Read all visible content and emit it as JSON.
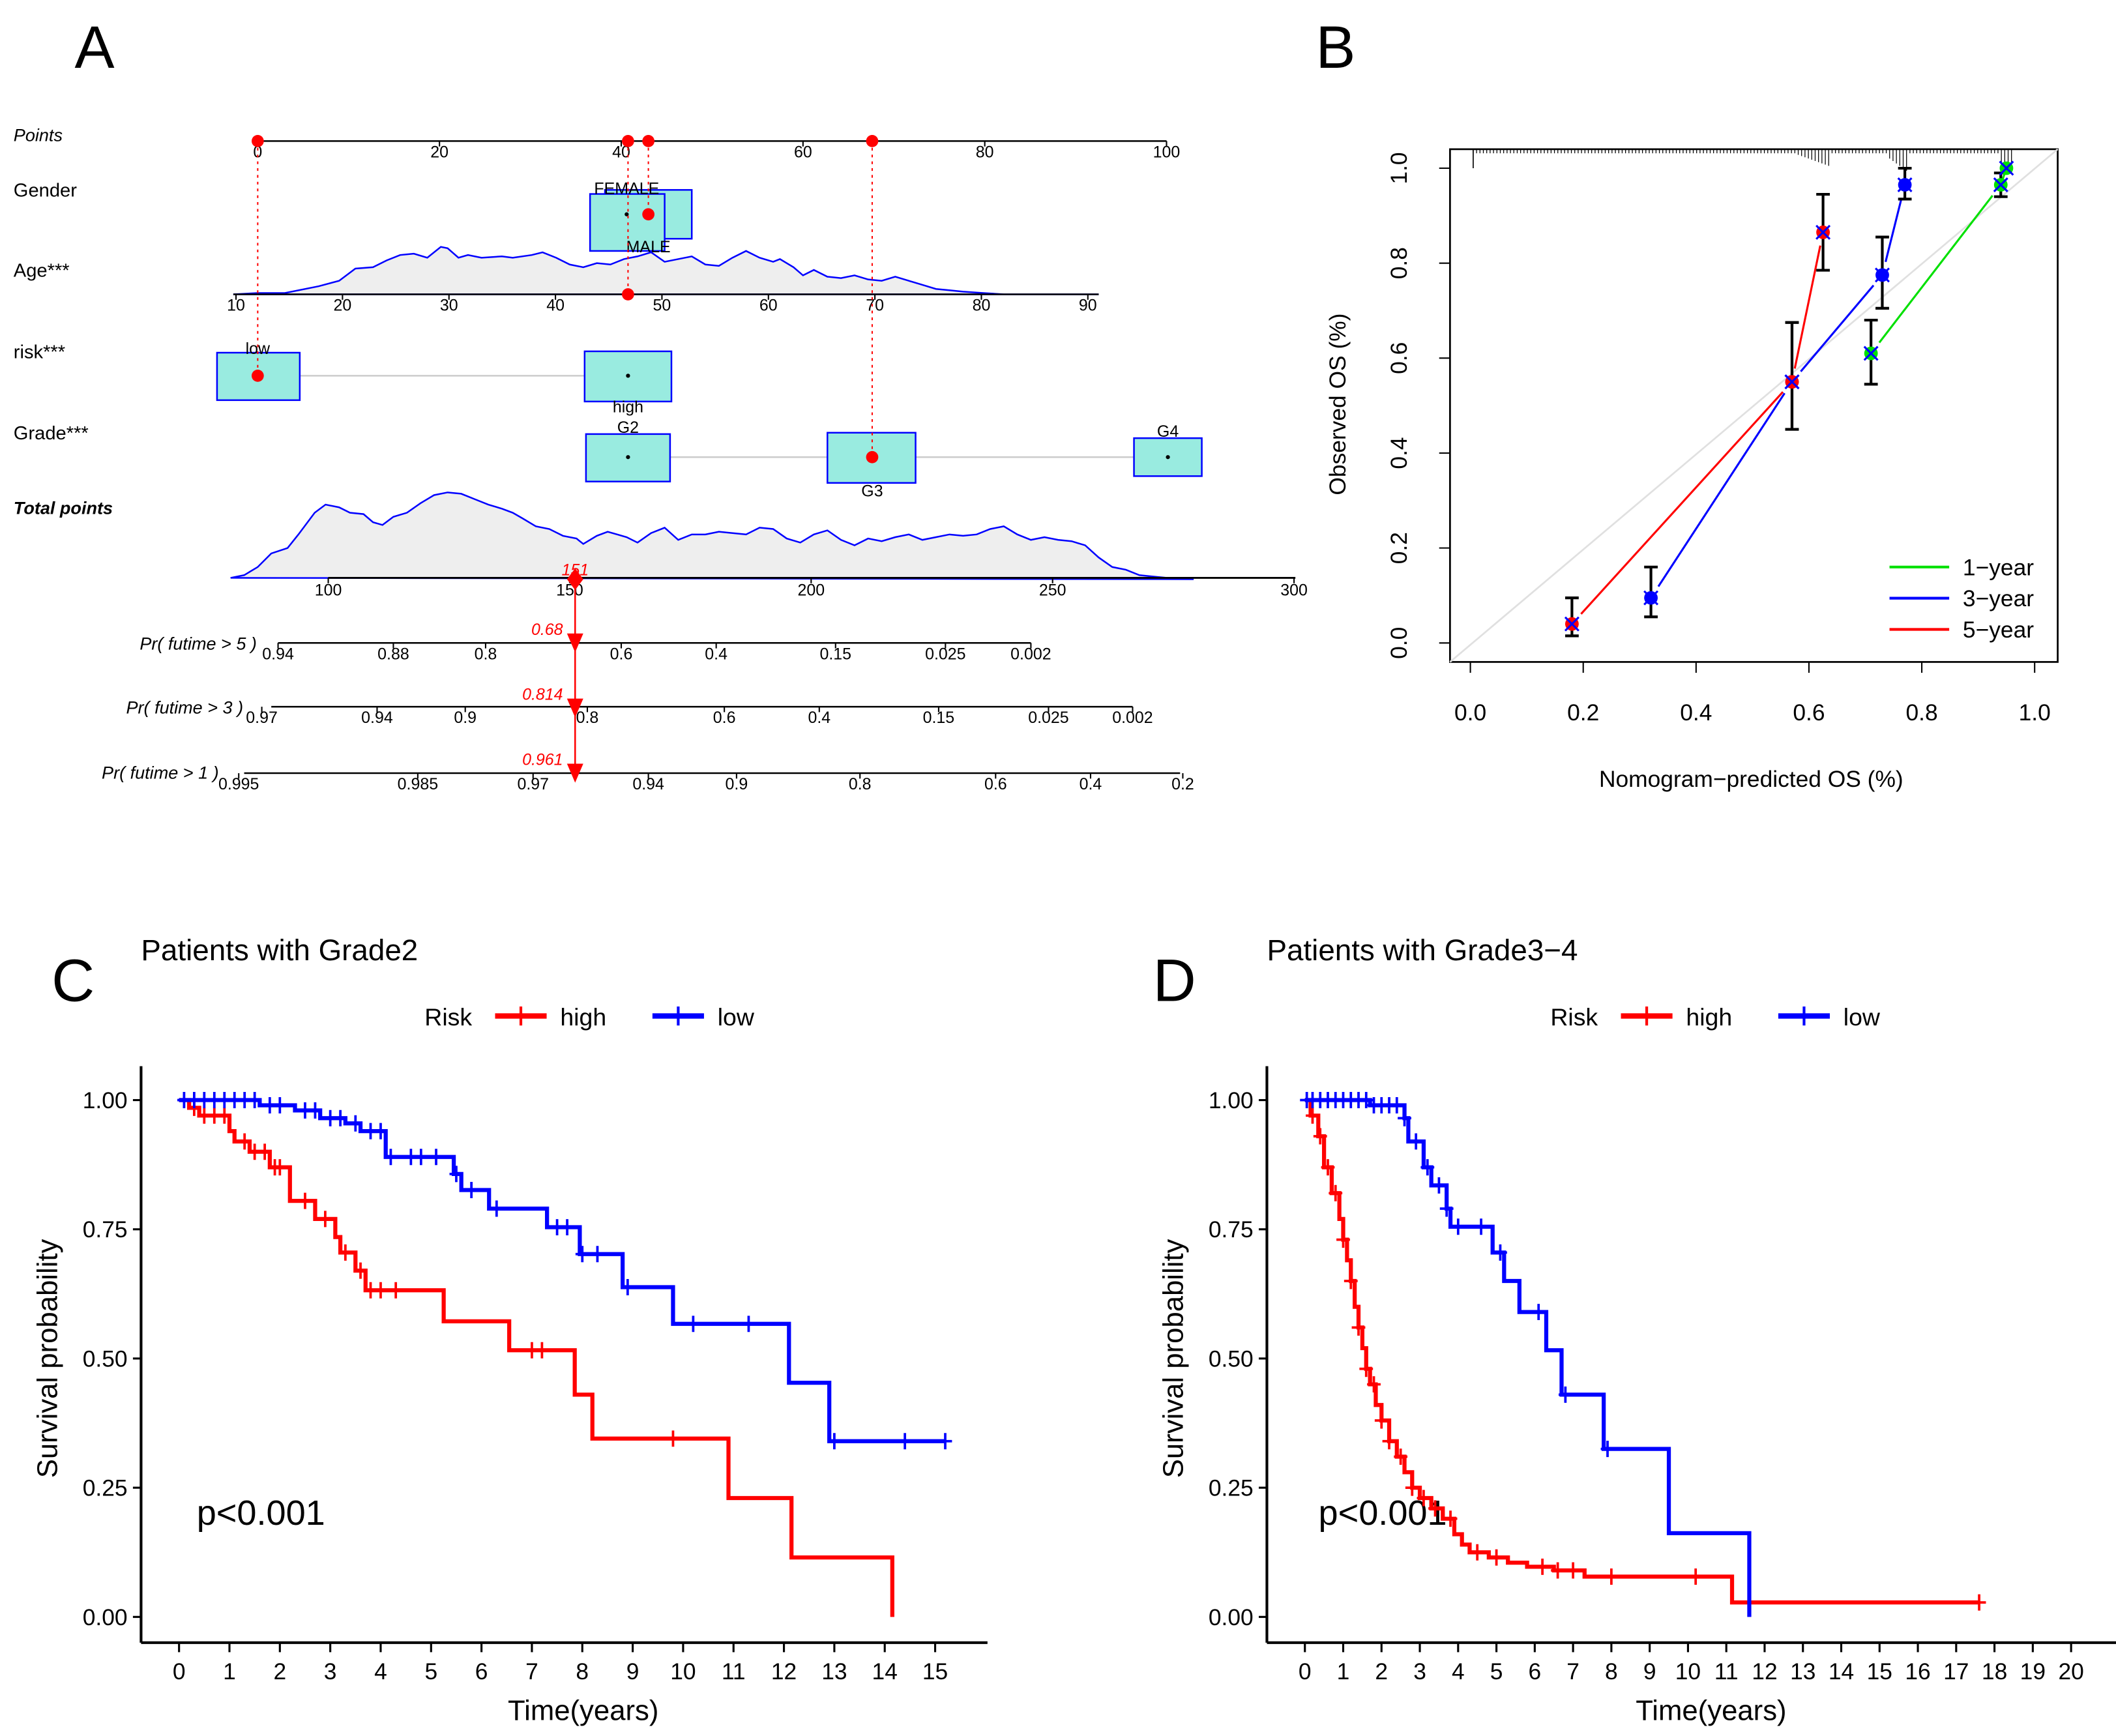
{
  "panels": {
    "A": {
      "letter": "A",
      "rows": [
        {
          "key": "points",
          "label": "Points"
        },
        {
          "key": "gender",
          "label": "Gender"
        },
        {
          "key": "age",
          "label": "Age***"
        },
        {
          "key": "risk",
          "label": "risk***"
        },
        {
          "key": "grade",
          "label": "Grade***"
        },
        {
          "key": "total",
          "label": "Total points"
        }
      ],
      "points_axis": {
        "min": 0,
        "max": 100,
        "ticks": [
          "0",
          "20",
          "40",
          "60",
          "80",
          "100"
        ]
      },
      "gender": {
        "levels": [
          {
            "label": "FEMALE",
            "points": 40.5
          },
          {
            "label": "MALE",
            "points": 43
          }
        ],
        "selected_points": 43
      },
      "age": {
        "ticks": [
          "10",
          "20",
          "30",
          "40",
          "50",
          "60",
          "70",
          "80",
          "90"
        ],
        "selected_age": 47
      },
      "risk": {
        "levels": [
          {
            "label": "low",
            "points": 0
          },
          {
            "label": "high",
            "points": 40.5
          }
        ],
        "selected_points": 0
      },
      "grade": {
        "levels": [
          {
            "label": "G2",
            "points": 40.5
          },
          {
            "label": "G3",
            "points": 67.5
          },
          {
            "label": "G4",
            "points": 100
          }
        ],
        "selected_points": 67.5
      },
      "total_axis": {
        "ticks": [
          "100",
          "150",
          "200",
          "250",
          "300"
        ],
        "selected_total": 151,
        "selected_label": "151"
      },
      "probabilities": [
        {
          "label": "Pr( futime > 5 )",
          "value_label": "0.68",
          "ticks": [
            "0.94",
            "0.88",
            "0.8",
            "0.6",
            "0.4",
            "0.15",
            "0.025",
            "0.002"
          ]
        },
        {
          "label": "Pr( futime > 3 )",
          "value_label": "0.814",
          "ticks": [
            "0.97",
            "0.94",
            "0.9",
            "0.8",
            "0.6",
            "0.4",
            "0.15",
            "0.025",
            "0.002"
          ]
        },
        {
          "label": "Pr( futime > 1 )",
          "value_label": "0.961",
          "ticks": [
            "0.995",
            "0.985",
            "0.97",
            "0.94",
            "0.9",
            "0.8",
            "0.6",
            "0.4",
            "0.2"
          ]
        }
      ]
    },
    "B": {
      "letter": "B"
    },
    "C": {
      "letter": "C"
    },
    "D": {
      "letter": "D"
    }
  },
  "colors": {
    "red": "#ff0000",
    "blue": "#0000ff",
    "green": "#00e000",
    "box_fill": "#99ebe0",
    "density_fill": "#eeeeee"
  },
  "chart_data": [
    {
      "type": "line",
      "panel": "B",
      "title": "",
      "xlabel": "Nomogram−predicted OS (%)",
      "ylabel": "Observed OS (%)",
      "xlim": [
        0,
        1
      ],
      "ylim": [
        0,
        1
      ],
      "xticks": [
        "0.0",
        "0.2",
        "0.4",
        "0.6",
        "0.8",
        "1.0"
      ],
      "yticks": [
        "0.0",
        "0.2",
        "0.4",
        "0.6",
        "0.8",
        "1.0"
      ],
      "legend": {
        "placement": "bottom-right",
        "entries": [
          "1−year",
          "3−year",
          "5−year"
        ]
      },
      "series": [
        {
          "name": "1−year",
          "color": "#00e000",
          "x": [
            0.71,
            0.94,
            0.95
          ],
          "y": [
            0.61,
            0.965,
            1.0
          ],
          "ci_low": [
            0.545,
            0.94,
            null
          ],
          "ci_high": [
            0.68,
            0.99,
            null
          ]
        },
        {
          "name": "3−year",
          "color": "#0000ff",
          "x": [
            0.32,
            0.57,
            0.73,
            0.77
          ],
          "y": [
            0.095,
            0.55,
            0.775,
            0.965
          ],
          "ci_low": [
            0.055,
            0.45,
            0.705,
            0.935
          ],
          "ci_high": [
            0.16,
            0.675,
            0.855,
            1.0
          ]
        },
        {
          "name": "5−year",
          "color": "#ff0000",
          "x": [
            0.18,
            0.57,
            0.625
          ],
          "y": [
            0.04,
            0.55,
            0.865
          ],
          "ci_low": [
            0.015,
            0.45,
            0.785
          ],
          "ci_high": [
            0.095,
            0.675,
            0.945
          ]
        }
      ],
      "reference_line": "diagonal y=x"
    },
    {
      "type": "line",
      "panel": "C",
      "title": "Patients with Grade2",
      "xlabel": "Time(years)",
      "ylabel": "Survival probability",
      "xlim": [
        0,
        15.5
      ],
      "ylim": [
        0,
        1
      ],
      "xticks": [
        "0",
        "1",
        "2",
        "3",
        "4",
        "5",
        "6",
        "7",
        "8",
        "9",
        "10",
        "11",
        "12",
        "13",
        "14",
        "15"
      ],
      "yticks": [
        "0.00",
        "0.25",
        "0.50",
        "0.75",
        "1.00"
      ],
      "legend": {
        "title": "Risk",
        "placement": "top",
        "entries": [
          "high",
          "low"
        ]
      },
      "annotation": "p<0.001",
      "series": [
        {
          "name": "high",
          "color": "#ff0000",
          "steps": [
            [
              0,
              1.0
            ],
            [
              0.2,
              0.985
            ],
            [
              0.4,
              0.97
            ],
            [
              1.0,
              0.94
            ],
            [
              1.1,
              0.92
            ],
            [
              1.4,
              0.9
            ],
            [
              1.8,
              0.87
            ],
            [
              2.2,
              0.805
            ],
            [
              2.7,
              0.77
            ],
            [
              3.1,
              0.735
            ],
            [
              3.2,
              0.705
            ],
            [
              3.5,
              0.67
            ],
            [
              3.7,
              0.632
            ],
            [
              5.25,
              0.572
            ],
            [
              6.55,
              0.516
            ],
            [
              7.85,
              0.43
            ],
            [
              8.2,
              0.345
            ],
            [
              10.9,
              0.23
            ],
            [
              12.15,
              0.115
            ],
            [
              14.15,
              0.0
            ]
          ],
          "end": 14.15,
          "censor": [
            0.3,
            0.5,
            0.7,
            0.9,
            1.3,
            1.5,
            1.7,
            1.9,
            2.0,
            2.5,
            2.9,
            3.3,
            3.6,
            3.8,
            4.0,
            4.3,
            7.0,
            7.2,
            9.8
          ]
        },
        {
          "name": "low",
          "color": "#0000ff",
          "steps": [
            [
              0,
              1.0
            ],
            [
              1.6,
              0.99
            ],
            [
              2.3,
              0.98
            ],
            [
              2.8,
              0.965
            ],
            [
              3.3,
              0.955
            ],
            [
              3.6,
              0.94
            ],
            [
              4.1,
              0.89
            ],
            [
              5.45,
              0.857
            ],
            [
              5.6,
              0.826
            ],
            [
              6.15,
              0.79
            ],
            [
              7.3,
              0.754
            ],
            [
              7.95,
              0.702
            ],
            [
              8.8,
              0.638
            ],
            [
              9.8,
              0.567
            ],
            [
              12.1,
              0.453
            ],
            [
              12.9,
              0.34
            ]
          ],
          "end": 15.2,
          "censor": [
            0.1,
            0.3,
            0.5,
            0.7,
            0.9,
            1.1,
            1.3,
            1.5,
            1.8,
            2.0,
            2.5,
            2.7,
            3.0,
            3.2,
            3.5,
            3.8,
            4.0,
            4.2,
            4.6,
            4.8,
            5.1,
            5.5,
            5.8,
            6.3,
            7.5,
            7.7,
            8.0,
            8.3,
            8.9,
            10.2,
            11.3,
            13.0,
            14.4,
            15.2
          ]
        }
      ]
    },
    {
      "type": "line",
      "panel": "D",
      "title": "Patients with Grade3−4",
      "xlabel": "Time(years)",
      "ylabel": "Survival probability",
      "xlim": [
        0,
        20.5
      ],
      "ylim": [
        0,
        1
      ],
      "xticks": [
        "0",
        "1",
        "2",
        "3",
        "4",
        "5",
        "6",
        "7",
        "8",
        "9",
        "10",
        "11",
        "12",
        "13",
        "14",
        "15",
        "16",
        "17",
        "18",
        "19",
        "20"
      ],
      "yticks": [
        "0.00",
        "0.25",
        "0.50",
        "0.75",
        "1.00"
      ],
      "legend": {
        "title": "Risk",
        "placement": "top",
        "entries": [
          "high",
          "low"
        ]
      },
      "annotation": "p<0.001",
      "series": [
        {
          "name": "high",
          "color": "#ff0000",
          "steps": [
            [
              0,
              1.0
            ],
            [
              0.15,
              0.97
            ],
            [
              0.35,
              0.93
            ],
            [
              0.5,
              0.87
            ],
            [
              0.7,
              0.82
            ],
            [
              0.9,
              0.77
            ],
            [
              1.0,
              0.73
            ],
            [
              1.1,
              0.69
            ],
            [
              1.2,
              0.65
            ],
            [
              1.3,
              0.6
            ],
            [
              1.4,
              0.56
            ],
            [
              1.5,
              0.52
            ],
            [
              1.6,
              0.48
            ],
            [
              1.7,
              0.45
            ],
            [
              1.85,
              0.41
            ],
            [
              2.0,
              0.38
            ],
            [
              2.2,
              0.34
            ],
            [
              2.4,
              0.31
            ],
            [
              2.6,
              0.28
            ],
            [
              2.8,
              0.25
            ],
            [
              3.0,
              0.23
            ],
            [
              3.3,
              0.21
            ],
            [
              3.6,
              0.19
            ],
            [
              3.9,
              0.16
            ],
            [
              4.1,
              0.14
            ],
            [
              4.3,
              0.125
            ],
            [
              4.8,
              0.115
            ],
            [
              5.3,
              0.105
            ],
            [
              5.8,
              0.097
            ],
            [
              6.5,
              0.09
            ],
            [
              7.3,
              0.078
            ],
            [
              11.15,
              0.028
            ]
          ],
          "end": 17.6,
          "censor": [
            0.2,
            0.4,
            0.6,
            0.8,
            1.0,
            1.2,
            1.4,
            1.6,
            1.8,
            2.0,
            2.2,
            2.5,
            2.8,
            3.1,
            3.4,
            3.8,
            4.5,
            5.0,
            6.2,
            6.6,
            7.0,
            8.0,
            10.2,
            17.6
          ]
        },
        {
          "name": "low",
          "color": "#0000ff",
          "steps": [
            [
              0,
              1.0
            ],
            [
              1.7,
              0.99
            ],
            [
              2.6,
              0.965
            ],
            [
              2.7,
              0.92
            ],
            [
              3.1,
              0.87
            ],
            [
              3.3,
              0.835
            ],
            [
              3.7,
              0.79
            ],
            [
              3.8,
              0.755
            ],
            [
              4.9,
              0.705
            ],
            [
              5.2,
              0.65
            ],
            [
              5.6,
              0.59
            ],
            [
              6.3,
              0.516
            ],
            [
              6.7,
              0.43
            ],
            [
              7.8,
              0.325
            ],
            [
              9.5,
              0.162
            ],
            [
              11.6,
              0.0
            ]
          ],
          "end": 11.6,
          "censor": [
            0.05,
            0.2,
            0.4,
            0.6,
            0.8,
            1.0,
            1.2,
            1.4,
            1.6,
            1.8,
            2.0,
            2.2,
            2.4,
            2.6,
            2.9,
            3.2,
            3.5,
            3.7,
            4.0,
            4.6,
            5.1,
            6.1,
            6.8,
            7.9
          ]
        }
      ]
    }
  ]
}
